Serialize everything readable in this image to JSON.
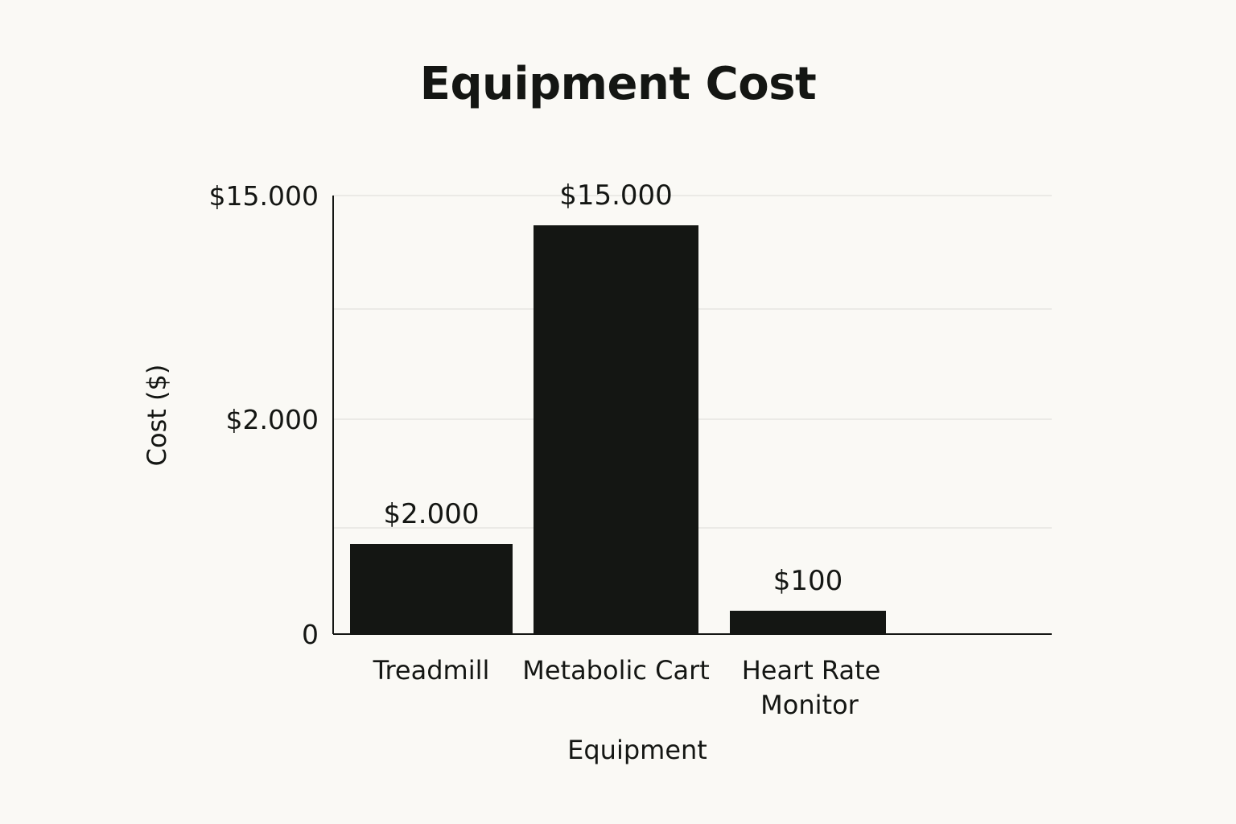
{
  "chart_data": {
    "type": "bar",
    "title": "Equipment Cost",
    "xlabel": "Equipment",
    "ylabel": "Cost ($)",
    "categories": [
      "Treadmill",
      "Metabolic Cart",
      "Heart Rate Monitor"
    ],
    "values": [
      2000,
      15000,
      100
    ],
    "data_labels": [
      "$2.000",
      "$15.000",
      "$100"
    ],
    "y_tick_labels": [
      "0",
      "$2.000",
      "$15.000"
    ],
    "y_ticks": [
      0,
      2000,
      15000
    ],
    "grid": true,
    "bar_color": "#141613",
    "background": "#faf9f5"
  }
}
